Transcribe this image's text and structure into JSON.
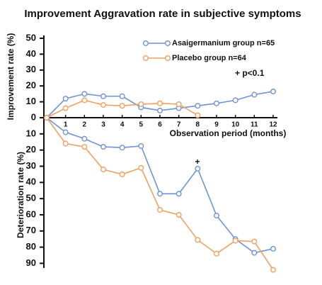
{
  "chart_data": [
    {
      "type": "line",
      "title": "Improvement Aggravation rate in subjective symptoms",
      "y_label": "Improvement rate (%)",
      "x_label": "Observation period (months)",
      "annotation": "+ p<0.1",
      "x": [
        0,
        1,
        2,
        3,
        4,
        5,
        6,
        7,
        8,
        9,
        10,
        11,
        12
      ],
      "xticks": [
        1,
        2,
        3,
        4,
        5,
        6,
        7,
        8,
        9,
        10,
        11,
        12
      ],
      "xlim": [
        0,
        12.3
      ],
      "ylim": [
        0,
        50
      ],
      "yticks": [
        0,
        10,
        20,
        30,
        40,
        50
      ],
      "legend": "top-right",
      "series": [
        {
          "name": "Asaigermanium group n=65",
          "color": "#6f93d6",
          "values": [
            0,
            12,
            15,
            13.5,
            13.5,
            6.5,
            4.5,
            6,
            7.5,
            9,
            11,
            14.5,
            16.5
          ]
        },
        {
          "name": "Placebo group n=64",
          "color": "#f0a060",
          "values": [
            0,
            6,
            11,
            8,
            7.5,
            8.5,
            9,
            8.5,
            1.5,
            null,
            null,
            null,
            null
          ]
        }
      ]
    },
    {
      "type": "line",
      "y_label": "Deterioration rate (%)",
      "annotation": "+",
      "x": [
        0,
        1,
        2,
        3,
        4,
        5,
        6,
        7,
        8,
        9,
        10,
        11,
        12
      ],
      "xlim": [
        0,
        12.3
      ],
      "ylim": [
        0,
        92
      ],
      "yticks": [
        10,
        20,
        30,
        40,
        50,
        60,
        70,
        80,
        90
      ],
      "inverted": true,
      "series": [
        {
          "color": "#6f93d6",
          "values": [
            0,
            9,
            13,
            18,
            18.5,
            17.5,
            47,
            47,
            31.5,
            60.5,
            75,
            83.5,
            81
          ]
        },
        {
          "color": "#f0a060",
          "values": [
            0,
            16,
            18,
            32,
            35,
            31,
            57,
            60,
            75.5,
            84,
            76,
            76.5,
            94
          ]
        }
      ]
    }
  ]
}
